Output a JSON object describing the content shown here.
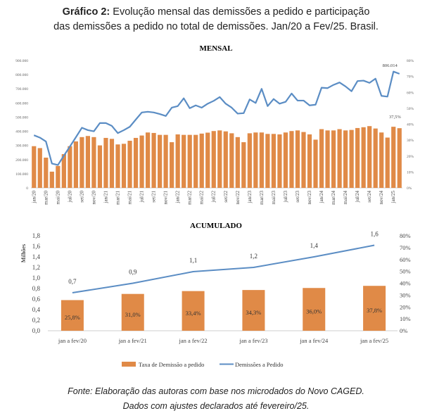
{
  "header": {
    "title_bold": "Gráfico 2:",
    "title_line1": "Evolução mensal das demissões a pedido e participação",
    "title_line2": "das demissões a pedido no total de demissões. Jan/20 a Fev/25. Brasil."
  },
  "footer": {
    "line1": "Fonte: Elaboração das autoras com base nos microdados do Novo CAGED.",
    "line2": "Dados com ajustes declarados até fevereiro/25."
  },
  "colors": {
    "bar": "#E08A47",
    "line": "#5B8DC4",
    "axis": "#BFBFBF"
  },
  "chart_data": [
    {
      "type": "bar+line",
      "title": "MENSAL",
      "x_tick_labels": [
        "jan/20",
        "mar/20",
        "mai/20",
        "jul/20",
        "set/20",
        "nov/20",
        "jan/21",
        "mar/21",
        "mai/21",
        "jul/21",
        "set/21",
        "nov/21",
        "jan/22",
        "mar/22",
        "mai/22",
        "jul/22",
        "set/22",
        "nov/22",
        "jan/23",
        "mar/23",
        "mai/23",
        "jul/23",
        "set/23",
        "nov/23",
        "jan/24",
        "mar/24",
        "mai/24",
        "jul/24",
        "set/24",
        "nov/24",
        "jan/25"
      ],
      "y_left_ticks": [
        "0",
        "100.000",
        "200.000",
        "300.000",
        "400.000",
        "500.000",
        "600.000",
        "700.000",
        "800.000",
        "900.000"
      ],
      "y_right_ticks": [
        "0%",
        "10%",
        "20%",
        "30%",
        "40%",
        "50%",
        "60%",
        "70%",
        "80%"
      ],
      "ylim_left": [
        0,
        900000
      ],
      "ylim_right": [
        0,
        80
      ],
      "bars_pct": [
        26.2,
        25.0,
        19.0,
        10.2,
        13.8,
        21.2,
        26.2,
        29.2,
        31.9,
        32.6,
        31.9,
        26.7,
        31.4,
        30.8,
        27.3,
        27.7,
        29.6,
        31.4,
        32.9,
        34.8,
        34.5,
        33.3,
        33.3,
        28.7,
        33.6,
        33.3,
        33.3,
        33.3,
        34.1,
        34.7,
        35.7,
        36.1,
        35.5,
        34.3,
        31.9,
        28.7,
        34.3,
        34.8,
        34.8,
        33.9,
        33.9,
        33.6,
        34.8,
        35.7,
        36.1,
        35.1,
        33.6,
        30.3,
        36.9,
        36.1,
        36.1,
        36.9,
        36.1,
        36.4,
        37.6,
        38.1,
        38.8,
        37.3,
        34.8,
        31.6,
        38.4,
        37.5
      ],
      "line_values": [
        372000,
        355000,
        328000,
        172000,
        162000,
        228000,
        292000,
        358000,
        425000,
        408000,
        400000,
        458000,
        458000,
        438000,
        387000,
        408000,
        432000,
        483000,
        533000,
        538000,
        533000,
        522000,
        508000,
        567000,
        578000,
        633000,
        563000,
        583000,
        567000,
        595000,
        615000,
        642000,
        595000,
        567000,
        525000,
        528000,
        625000,
        600000,
        700000,
        578000,
        628000,
        595000,
        608000,
        667000,
        617000,
        617000,
        583000,
        588000,
        708000,
        705000,
        728000,
        745000,
        717000,
        683000,
        755000,
        758000,
        742000,
        772000,
        650000,
        645000,
        822000,
        806014
      ],
      "annotations": {
        "line_last": "806.014",
        "bar_last": "37,5%"
      }
    },
    {
      "type": "bar+line",
      "title": "ACUMULADO",
      "categories": [
        "jan a fev/20",
        "jan a fev/21",
        "jan a fev/22",
        "jan a fev/23",
        "jan a fev/24",
        "jan a fev/25"
      ],
      "ylabel_left": "Milhões",
      "y_left_ticks": [
        "0,0",
        "0,2",
        "0,4",
        "0,6",
        "0,8",
        "1,0",
        "1,2",
        "1,4",
        "1,6",
        "1,8"
      ],
      "y_right_ticks": [
        "0%",
        "10%",
        "20%",
        "30%",
        "40%",
        "50%",
        "60%",
        "70%",
        "80%"
      ],
      "ylim_left": [
        0,
        1.8
      ],
      "ylim_right": [
        0,
        80
      ],
      "bars_pct": [
        25.8,
        31.0,
        33.4,
        34.3,
        36.0,
        37.8
      ],
      "bar_labels": [
        "25,8%",
        "31,0%",
        "33,4%",
        "34,3%",
        "36,0%",
        "37,8%"
      ],
      "line_values": [
        0.72,
        0.9,
        1.12,
        1.2,
        1.4,
        1.62
      ],
      "line_labels": [
        "0,7",
        "0,9",
        "1,1",
        "1,2",
        "1,4",
        "1,6"
      ],
      "legend": {
        "bar": "Taxa de Demissão a pedido",
        "line": "Demissões a Pedido",
        "position": "bottom"
      }
    }
  ]
}
